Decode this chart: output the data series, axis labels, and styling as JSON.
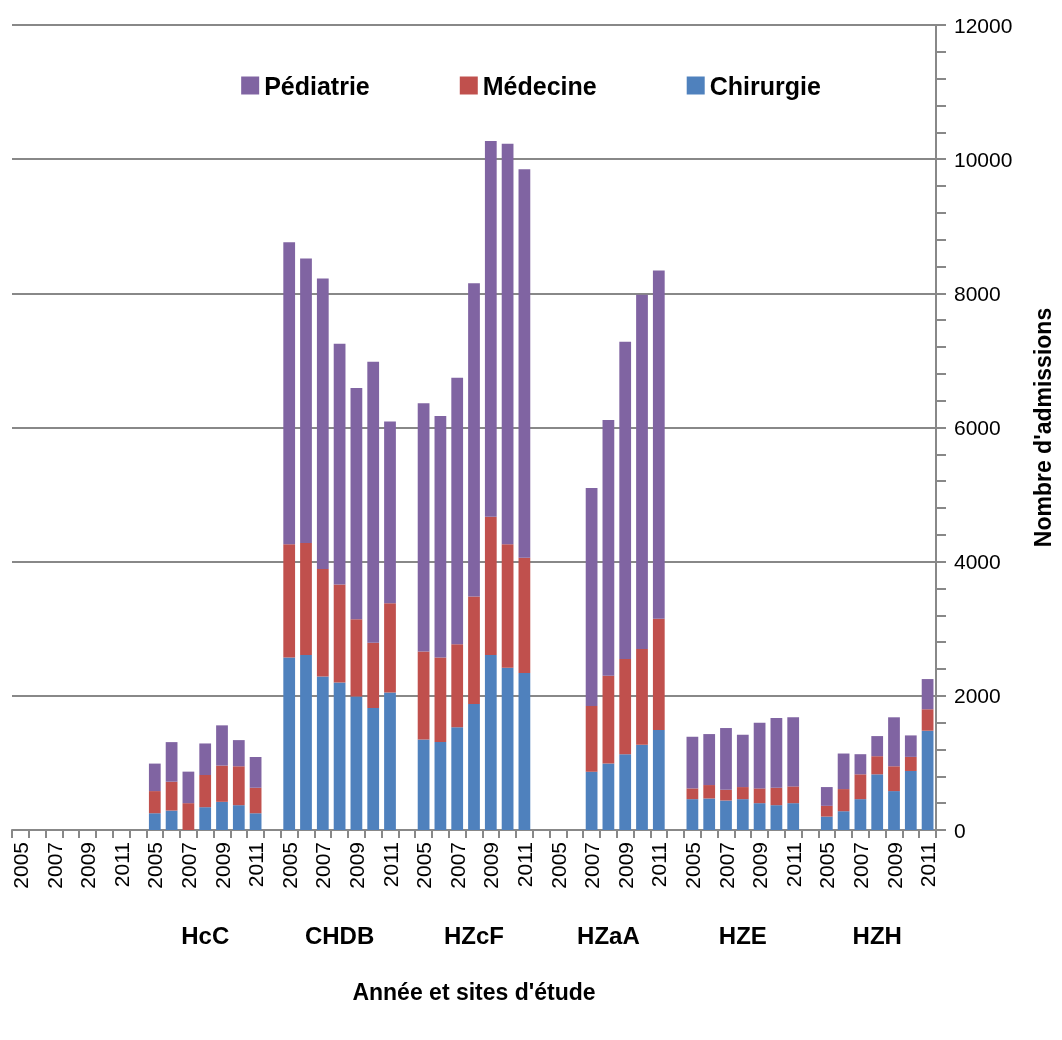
{
  "chart_data": {
    "type": "bar",
    "stacked": true,
    "xlabel": "Année et sites d'étude",
    "ylabel": "Nombre d'admissions",
    "annotations": [
      "HcC",
      "CHDB",
      "HZcF",
      "HZaA",
      "HZE",
      "HZH"
    ],
    "categories": [
      "2005",
      null,
      "2007",
      null,
      "2009",
      null,
      "2011",
      null,
      "2005",
      null,
      "2007",
      null,
      "2009",
      null,
      "2011",
      null,
      "2005",
      null,
      "2007",
      null,
      "2009",
      null,
      "2011",
      null,
      "2005",
      null,
      "2007",
      null,
      "2009",
      null,
      "2011",
      null,
      "2005",
      null,
      "2007",
      null,
      "2009",
      null,
      "2011",
      null,
      "2005",
      null,
      "2007",
      null,
      "2009",
      null,
      "2011",
      null,
      "2005",
      null,
      "2007",
      null,
      "2009",
      null,
      "2011"
    ],
    "series": [
      {
        "name": "Chirurgie",
        "color": "#4f81bd",
        "values": [
          null,
          null,
          null,
          null,
          null,
          null,
          null,
          null,
          250,
          290,
          0,
          340,
          420,
          370,
          250,
          null,
          2570,
          2610,
          2290,
          2200,
          1990,
          1820,
          2050,
          null,
          1350,
          1310,
          1530,
          1880,
          2610,
          2420,
          2340,
          null,
          null,
          null,
          870,
          990,
          1130,
          1270,
          1490,
          null,
          460,
          470,
          440,
          460,
          400,
          370,
          400,
          null,
          200,
          280,
          460,
          830,
          580,
          880,
          1480
        ]
      },
      {
        "name": "Médecine",
        "color": "#c0504d",
        "values": [
          null,
          null,
          null,
          null,
          null,
          null,
          null,
          null,
          330,
          430,
          400,
          480,
          540,
          580,
          380,
          null,
          1690,
          1670,
          1600,
          1460,
          1150,
          970,
          1330,
          null,
          1310,
          1260,
          1240,
          1600,
          2060,
          1840,
          1720,
          null,
          null,
          null,
          980,
          1310,
          1420,
          1430,
          1660,
          null,
          160,
          200,
          160,
          180,
          220,
          260,
          250,
          null,
          160,
          330,
          370,
          270,
          370,
          210,
          320
        ]
      },
      {
        "name": "Pédiatrie",
        "color": "#8064a2",
        "values": [
          null,
          null,
          null,
          null,
          null,
          null,
          null,
          null,
          410,
          590,
          470,
          470,
          600,
          390,
          460,
          null,
          4500,
          4240,
          4330,
          3590,
          3450,
          4190,
          2710,
          null,
          3700,
          3600,
          3970,
          4670,
          5600,
          5970,
          5790,
          null,
          null,
          null,
          3250,
          3810,
          4730,
          5280,
          5190,
          null,
          770,
          760,
          920,
          780,
          980,
          1040,
          1030,
          null,
          280,
          530,
          300,
          300,
          730,
          320,
          450
        ]
      }
    ],
    "ylim": [
      0,
      12000
    ],
    "yticks": [
      0,
      {
        "value": 400,
        "label": null
      },
      {
        "value": 800,
        "label": null
      },
      {
        "value": 1200,
        "label": null
      },
      {
        "value": 1600,
        "label": null
      },
      2000,
      {
        "value": 2400,
        "label": null
      },
      {
        "value": 2800,
        "label": null
      },
      {
        "value": 3200,
        "label": null
      },
      {
        "value": 3600,
        "label": null
      },
      4000,
      {
        "value": 4400,
        "label": null
      },
      {
        "value": 4800,
        "label": null
      },
      {
        "value": 5200,
        "label": null
      },
      {
        "value": 5600,
        "label": null
      },
      6000,
      {
        "value": 6400,
        "label": null
      },
      {
        "value": 6800,
        "label": null
      },
      {
        "value": 7200,
        "label": null
      },
      {
        "value": 7600,
        "label": null
      },
      8000,
      {
        "value": 8400,
        "label": null
      },
      {
        "value": 8800,
        "label": null
      },
      {
        "value": 9200,
        "label": null
      },
      {
        "value": 9600,
        "label": null
      },
      10000,
      {
        "value": 10400,
        "label": null
      },
      {
        "value": 10800,
        "label": null
      },
      {
        "value": 11200,
        "label": null
      },
      {
        "value": 11600,
        "label": null
      },
      12000
    ],
    "grid": "y",
    "legend": "top"
  }
}
